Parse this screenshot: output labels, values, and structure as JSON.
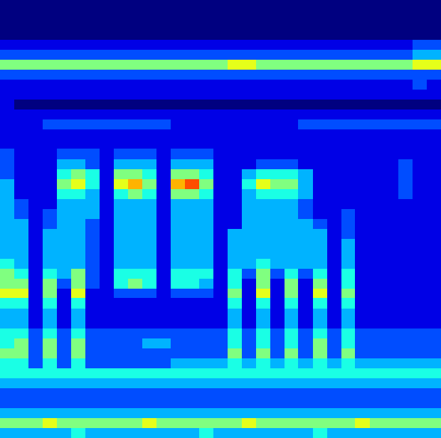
{
  "chart_data": {
    "type": "heatmap",
    "tick_labels": false,
    "zlim": [
      0,
      10
    ],
    "cells": [
      [
        0,
        0,
        0,
        0,
        0,
        0,
        0,
        0,
        0,
        0,
        0,
        0,
        0,
        0,
        0,
        0,
        0,
        0,
        0,
        0,
        0,
        0,
        0,
        0,
        0,
        0,
        0,
        0,
        0,
        0,
        0
      ],
      [
        0,
        0,
        0,
        0,
        0,
        0,
        0,
        0,
        0,
        0,
        0,
        0,
        0,
        0,
        0,
        0,
        0,
        0,
        0,
        0,
        0,
        0,
        0,
        0,
        0,
        0,
        0,
        0,
        0,
        0,
        0
      ],
      [
        0,
        0,
        0,
        0,
        0,
        0,
        0,
        0,
        0,
        0,
        0,
        0,
        0,
        0,
        0,
        0,
        0,
        0,
        0,
        0,
        0,
        0,
        0,
        0,
        0,
        0,
        0,
        0,
        0,
        0,
        0
      ],
      [
        0,
        0,
        0,
        0,
        0,
        0,
        0,
        0,
        0,
        0,
        0,
        0,
        0,
        0,
        0,
        0,
        0,
        0,
        0,
        0,
        0,
        0,
        0,
        0,
        0,
        0,
        0,
        0,
        0,
        0,
        0
      ],
      [
        1,
        1,
        1,
        1,
        1,
        1,
        1,
        1,
        1,
        1,
        1,
        1,
        1,
        1,
        1,
        1,
        1,
        1,
        1,
        1,
        1,
        1,
        1,
        1,
        1,
        1,
        1,
        1,
        1,
        2,
        2
      ],
      [
        2,
        2,
        2,
        2,
        2,
        2,
        2,
        2,
        2,
        2,
        2,
        2,
        2,
        2,
        2,
        2,
        2,
        2,
        2,
        2,
        2,
        2,
        2,
        2,
        2,
        2,
        2,
        2,
        2,
        3,
        3
      ],
      [
        5,
        5,
        5,
        5,
        5,
        5,
        5,
        5,
        5,
        5,
        5,
        5,
        5,
        5,
        5,
        5,
        6,
        6,
        5,
        5,
        5,
        5,
        5,
        5,
        5,
        5,
        5,
        5,
        5,
        6,
        6
      ],
      [
        2,
        2,
        2,
        2,
        2,
        2,
        2,
        2,
        2,
        2,
        2,
        2,
        2,
        2,
        2,
        2,
        2,
        2,
        2,
        2,
        2,
        2,
        2,
        2,
        2,
        2,
        2,
        2,
        2,
        2,
        2
      ],
      [
        1,
        1,
        1,
        1,
        1,
        1,
        1,
        1,
        1,
        1,
        1,
        1,
        1,
        1,
        1,
        1,
        1,
        1,
        1,
        1,
        1,
        1,
        1,
        1,
        1,
        1,
        1,
        1,
        1,
        2,
        1
      ],
      [
        1,
        1,
        1,
        1,
        1,
        1,
        1,
        1,
        1,
        1,
        1,
        1,
        1,
        1,
        1,
        1,
        1,
        1,
        1,
        1,
        1,
        1,
        1,
        1,
        1,
        1,
        1,
        1,
        1,
        1,
        1
      ],
      [
        1,
        0,
        0,
        0,
        0,
        0,
        0,
        0,
        0,
        0,
        0,
        0,
        0,
        0,
        0,
        0,
        0,
        0,
        0,
        0,
        0,
        0,
        0,
        0,
        0,
        0,
        0,
        0,
        0,
        0,
        0
      ],
      [
        1,
        1,
        1,
        1,
        1,
        1,
        1,
        1,
        1,
        1,
        1,
        1,
        1,
        1,
        1,
        1,
        1,
        1,
        1,
        1,
        1,
        1,
        1,
        1,
        1,
        1,
        1,
        1,
        1,
        1,
        1
      ],
      [
        1,
        1,
        1,
        2,
        2,
        2,
        2,
        2,
        2,
        2,
        2,
        2,
        1,
        1,
        1,
        1,
        1,
        1,
        1,
        1,
        1,
        2,
        2,
        2,
        2,
        2,
        2,
        2,
        2,
        2,
        2
      ],
      [
        1,
        1,
        1,
        1,
        1,
        1,
        1,
        1,
        1,
        1,
        1,
        1,
        1,
        1,
        1,
        1,
        1,
        1,
        1,
        1,
        1,
        1,
        1,
        1,
        1,
        1,
        1,
        1,
        1,
        1,
        1
      ],
      [
        1,
        1,
        1,
        1,
        1,
        1,
        1,
        1,
        1,
        1,
        1,
        1,
        1,
        1,
        1,
        1,
        1,
        1,
        1,
        1,
        1,
        1,
        1,
        1,
        1,
        1,
        1,
        1,
        1,
        1,
        1
      ],
      [
        2,
        1,
        1,
        1,
        2,
        2,
        2,
        1,
        2,
        2,
        2,
        1,
        2,
        2,
        2,
        1,
        1,
        1,
        1,
        1,
        1,
        1,
        1,
        1,
        1,
        1,
        1,
        1,
        1,
        1,
        1
      ],
      [
        2,
        1,
        1,
        1,
        3,
        3,
        2,
        1,
        3,
        3,
        3,
        1,
        3,
        3,
        3,
        1,
        1,
        1,
        2,
        2,
        2,
        1,
        1,
        1,
        1,
        1,
        1,
        1,
        2,
        1,
        1
      ],
      [
        2,
        1,
        1,
        1,
        4,
        5,
        4,
        1,
        5,
        5,
        4,
        1,
        5,
        5,
        4,
        1,
        1,
        3,
        4,
        4,
        4,
        3,
        1,
        1,
        1,
        1,
        1,
        1,
        2,
        1,
        1
      ],
      [
        3,
        1,
        1,
        1,
        5,
        6,
        4,
        1,
        6,
        7,
        5,
        1,
        7,
        8,
        5,
        1,
        1,
        4,
        6,
        5,
        5,
        3,
        1,
        1,
        1,
        1,
        1,
        1,
        2,
        1,
        1
      ],
      [
        3,
        1,
        1,
        1,
        4,
        4,
        3,
        1,
        4,
        5,
        4,
        1,
        5,
        5,
        4,
        1,
        1,
        3,
        4,
        4,
        4,
        3,
        1,
        1,
        1,
        1,
        1,
        1,
        2,
        1,
        1
      ],
      [
        3,
        2,
        1,
        1,
        3,
        3,
        3,
        1,
        3,
        3,
        3,
        1,
        3,
        3,
        3,
        1,
        1,
        3,
        3,
        3,
        3,
        2,
        1,
        1,
        1,
        1,
        1,
        1,
        1,
        1,
        1
      ],
      [
        3,
        2,
        1,
        2,
        3,
        3,
        3,
        1,
        3,
        3,
        3,
        1,
        3,
        3,
        3,
        1,
        1,
        3,
        3,
        3,
        3,
        2,
        1,
        1,
        2,
        1,
        1,
        1,
        1,
        1,
        1
      ],
      [
        3,
        3,
        1,
        2,
        3,
        3,
        2,
        1,
        3,
        3,
        3,
        1,
        3,
        3,
        3,
        1,
        1,
        3,
        3,
        3,
        3,
        3,
        2,
        1,
        2,
        1,
        1,
        1,
        1,
        1,
        1
      ],
      [
        3,
        3,
        1,
        3,
        3,
        3,
        2,
        1,
        3,
        3,
        3,
        1,
        3,
        3,
        3,
        1,
        3,
        3,
        3,
        3,
        3,
        3,
        3,
        1,
        2,
        1,
        1,
        1,
        1,
        1,
        1
      ],
      [
        3,
        3,
        1,
        3,
        3,
        3,
        2,
        1,
        3,
        3,
        3,
        1,
        3,
        3,
        3,
        1,
        3,
        3,
        3,
        3,
        3,
        3,
        3,
        1,
        3,
        1,
        1,
        1,
        1,
        1,
        1
      ],
      [
        3,
        3,
        1,
        3,
        3,
        3,
        2,
        1,
        3,
        3,
        3,
        1,
        3,
        3,
        3,
        1,
        3,
        3,
        3,
        3,
        3,
        3,
        3,
        1,
        3,
        1,
        1,
        1,
        1,
        1,
        1
      ],
      [
        4,
        3,
        1,
        3,
        3,
        3,
        2,
        1,
        3,
        3,
        3,
        1,
        3,
        3,
        3,
        1,
        3,
        3,
        4,
        3,
        3,
        3,
        3,
        1,
        3,
        1,
        1,
        1,
        1,
        1,
        1
      ],
      [
        5,
        4,
        1,
        4,
        3,
        5,
        2,
        1,
        4,
        4,
        4,
        1,
        4,
        4,
        4,
        1,
        4,
        2,
        5,
        2,
        4,
        2,
        4,
        1,
        4,
        1,
        1,
        1,
        1,
        1,
        1
      ],
      [
        5,
        5,
        1,
        5,
        2,
        5,
        2,
        1,
        4,
        5,
        4,
        1,
        4,
        4,
        3,
        1,
        4,
        1,
        5,
        1,
        5,
        1,
        5,
        1,
        4,
        1,
        1,
        1,
        1,
        1,
        1
      ],
      [
        6,
        6,
        1,
        5,
        1,
        6,
        1,
        1,
        2,
        2,
        2,
        1,
        2,
        2,
        2,
        1,
        5,
        1,
        6,
        1,
        5,
        1,
        6,
        1,
        5,
        1,
        1,
        1,
        1,
        1,
        1
      ],
      [
        4,
        4,
        1,
        4,
        1,
        4,
        1,
        1,
        1,
        1,
        1,
        1,
        1,
        1,
        1,
        1,
        4,
        1,
        4,
        1,
        4,
        1,
        4,
        1,
        4,
        1,
        1,
        1,
        1,
        1,
        1
      ],
      [
        3,
        3,
        1,
        3,
        1,
        3,
        1,
        1,
        1,
        1,
        1,
        1,
        1,
        1,
        1,
        1,
        3,
        1,
        3,
        1,
        3,
        1,
        3,
        1,
        3,
        1,
        1,
        1,
        1,
        1,
        1
      ],
      [
        3,
        3,
        1,
        3,
        1,
        3,
        1,
        1,
        1,
        1,
        1,
        1,
        1,
        1,
        1,
        1,
        3,
        1,
        3,
        1,
        3,
        1,
        3,
        1,
        3,
        1,
        1,
        1,
        1,
        1,
        1
      ],
      [
        4,
        4,
        2,
        4,
        2,
        4,
        2,
        2,
        2,
        2,
        2,
        2,
        2,
        2,
        2,
        2,
        4,
        2,
        4,
        2,
        4,
        2,
        4,
        2,
        4,
        2,
        2,
        2,
        2,
        2,
        2
      ],
      [
        4,
        5,
        2,
        5,
        2,
        5,
        2,
        2,
        2,
        2,
        3,
        3,
        2,
        2,
        2,
        2,
        4,
        2,
        4,
        2,
        4,
        2,
        5,
        2,
        4,
        2,
        2,
        2,
        2,
        2,
        2
      ],
      [
        5,
        5,
        2,
        5,
        2,
        5,
        2,
        2,
        2,
        2,
        2,
        2,
        2,
        2,
        2,
        2,
        5,
        2,
        5,
        2,
        5,
        2,
        5,
        2,
        5,
        2,
        2,
        2,
        2,
        2,
        2
      ],
      [
        4,
        4,
        2,
        4,
        2,
        4,
        2,
        2,
        2,
        2,
        2,
        2,
        3,
        3,
        3,
        3,
        4,
        3,
        4,
        3,
        4,
        3,
        4,
        3,
        4,
        3,
        3,
        3,
        3,
        3,
        3
      ],
      [
        4,
        4,
        4,
        4,
        4,
        4,
        4,
        4,
        4,
        4,
        4,
        4,
        4,
        4,
        4,
        4,
        4,
        4,
        4,
        4,
        4,
        4,
        4,
        4,
        4,
        4,
        4,
        4,
        4,
        4,
        4
      ],
      [
        3,
        3,
        3,
        3,
        3,
        3,
        3,
        3,
        3,
        3,
        3,
        3,
        3,
        3,
        3,
        3,
        3,
        3,
        3,
        3,
        3,
        3,
        3,
        3,
        3,
        3,
        3,
        3,
        3,
        3,
        3
      ],
      [
        2,
        2,
        2,
        2,
        2,
        2,
        2,
        2,
        2,
        2,
        2,
        2,
        2,
        2,
        2,
        2,
        2,
        2,
        2,
        2,
        2,
        2,
        2,
        2,
        2,
        2,
        2,
        2,
        2,
        2,
        2
      ],
      [
        2,
        2,
        2,
        2,
        2,
        2,
        2,
        2,
        2,
        2,
        2,
        2,
        2,
        2,
        2,
        2,
        2,
        2,
        2,
        2,
        2,
        2,
        2,
        2,
        2,
        2,
        2,
        2,
        2,
        2,
        2
      ],
      [
        3,
        3,
        3,
        3,
        3,
        3,
        3,
        3,
        3,
        3,
        3,
        3,
        3,
        3,
        3,
        3,
        3,
        3,
        3,
        3,
        3,
        3,
        3,
        3,
        3,
        3,
        3,
        3,
        3,
        3,
        3
      ],
      [
        5,
        5,
        5,
        6,
        5,
        5,
        5,
        5,
        5,
        5,
        6,
        5,
        5,
        5,
        5,
        5,
        5,
        6,
        5,
        5,
        5,
        5,
        5,
        5,
        5,
        6,
        5,
        5,
        5,
        5,
        5
      ],
      [
        3,
        3,
        3,
        3,
        3,
        4,
        3,
        3,
        3,
        3,
        3,
        3,
        3,
        3,
        4,
        3,
        3,
        3,
        3,
        3,
        3,
        3,
        4,
        3,
        3,
        3,
        3,
        3,
        3,
        3,
        3
      ]
    ]
  }
}
